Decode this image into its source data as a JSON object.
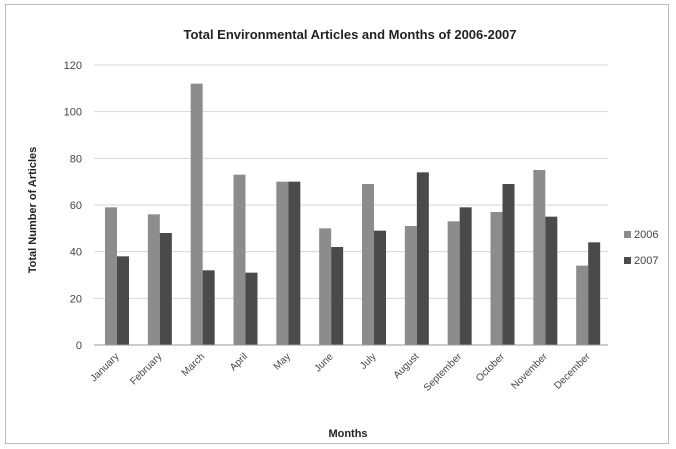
{
  "chart_data": {
    "type": "bar",
    "title": "Total Environmental Articles and Months of 2006-2007",
    "xlabel": "Months",
    "ylabel": "Total Number of Articles",
    "ylim": [
      0,
      120
    ],
    "yticks": [
      0,
      20,
      40,
      60,
      80,
      100,
      120
    ],
    "grid": true,
    "legend_position": "right",
    "categories": [
      "January",
      "February",
      "March",
      "April",
      "May",
      "June",
      "July",
      "August",
      "September",
      "October",
      "November",
      "December"
    ],
    "series": [
      {
        "name": "2006",
        "color": "#8c8c8c",
        "values": [
          59,
          56,
          112,
          73,
          70,
          50,
          69,
          51,
          53,
          57,
          75,
          34
        ]
      },
      {
        "name": "2007",
        "color": "#4a4a4a",
        "values": [
          38,
          48,
          32,
          31,
          70,
          42,
          49,
          74,
          59,
          69,
          55,
          44
        ]
      }
    ]
  }
}
